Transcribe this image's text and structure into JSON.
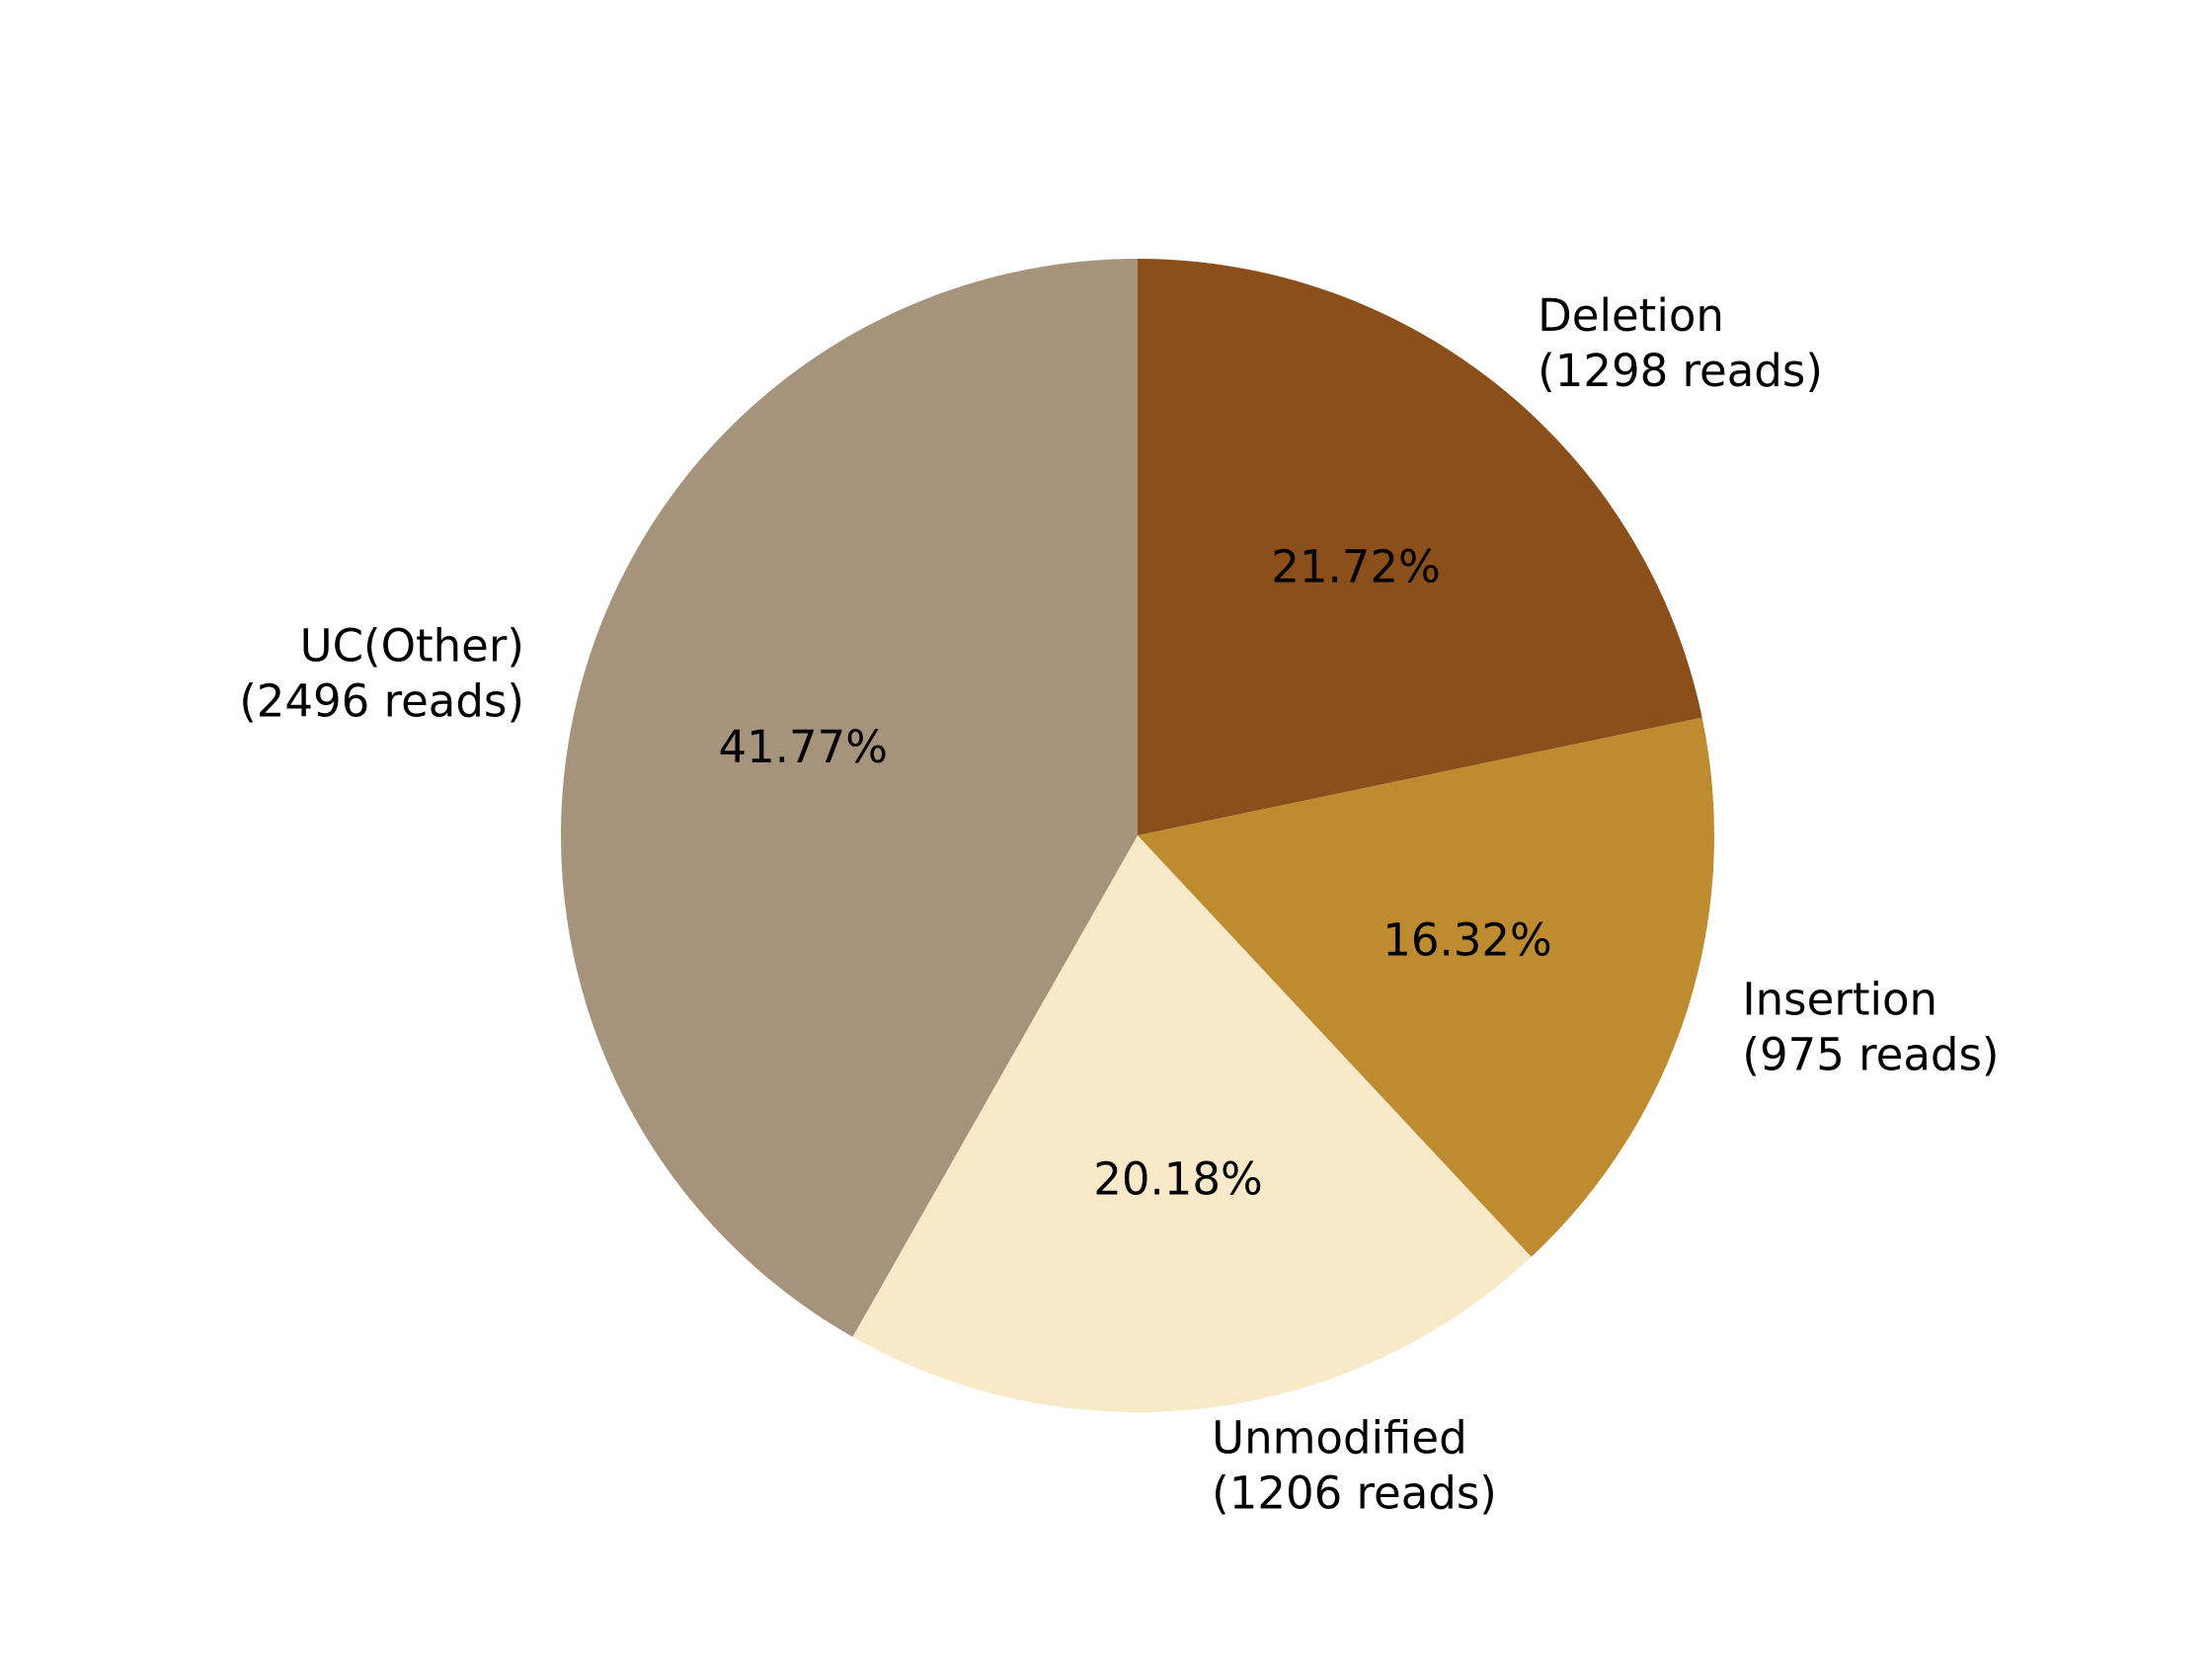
{
  "chart_data": {
    "type": "pie",
    "start_angle_deg": 90,
    "direction": "clockwise",
    "slices": [
      {
        "label": "Deletion",
        "reads_text": "(1298 reads)",
        "reads": 1298,
        "pct_text": "21.72%",
        "percent": 21.72,
        "color": "#8b4f1c"
      },
      {
        "label": "Insertion",
        "reads_text": "(975 reads)",
        "reads": 975,
        "pct_text": "16.32%",
        "percent": 16.32,
        "color": "#be8b31"
      },
      {
        "label": "Unmodified",
        "reads_text": "(1206 reads)",
        "reads": 1206,
        "pct_text": "20.18%",
        "percent": 20.18,
        "color": "#f8e9c9"
      },
      {
        "label": "UC(Other)",
        "reads_text": "(2496 reads)",
        "reads": 2496,
        "pct_text": "41.77%",
        "percent": 41.77,
        "color": "#a5937b"
      }
    ]
  }
}
